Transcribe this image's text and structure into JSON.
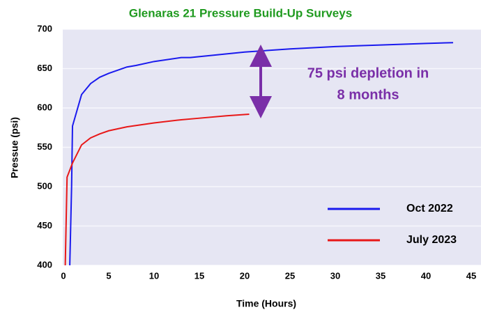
{
  "chart_data": {
    "type": "line",
    "title": "Glenaras 21 Pressure Build-Up Surveys",
    "x_label": "Time (Hours)",
    "y_label": "Pressue (psi)",
    "annotation": [
      "75 psi depletion in",
      "8 months"
    ],
    "xlim": [
      0,
      45
    ],
    "xticks": [
      0,
      5,
      10,
      15,
      20,
      25,
      30,
      35,
      40,
      45
    ],
    "ylim": [
      400,
      700
    ],
    "yticks": [
      400,
      450,
      500,
      550,
      600,
      650,
      700
    ],
    "grid": true,
    "legend": "lower right",
    "series": [
      {
        "name": "Oct 2022",
        "color": "#1a1aee",
        "x": [
          0.7,
          0.9,
          1.0,
          2,
          3,
          4,
          5,
          7,
          8,
          10,
          13,
          14,
          20,
          25,
          30,
          35,
          40,
          43
        ],
        "values": [
          400,
          500,
          577,
          617,
          631,
          639,
          644,
          652,
          654,
          659,
          664,
          664,
          671,
          675,
          678,
          680,
          682,
          683
        ]
      },
      {
        "name": "July 2023",
        "color": "#e81818",
        "x": [
          0.2,
          0.4,
          1,
          2,
          3,
          4,
          5,
          7,
          10,
          13,
          15,
          18,
          20.5
        ],
        "values": [
          400,
          512,
          530,
          553,
          562,
          567,
          571,
          576,
          581,
          585,
          587,
          590,
          592
        ]
      }
    ]
  }
}
